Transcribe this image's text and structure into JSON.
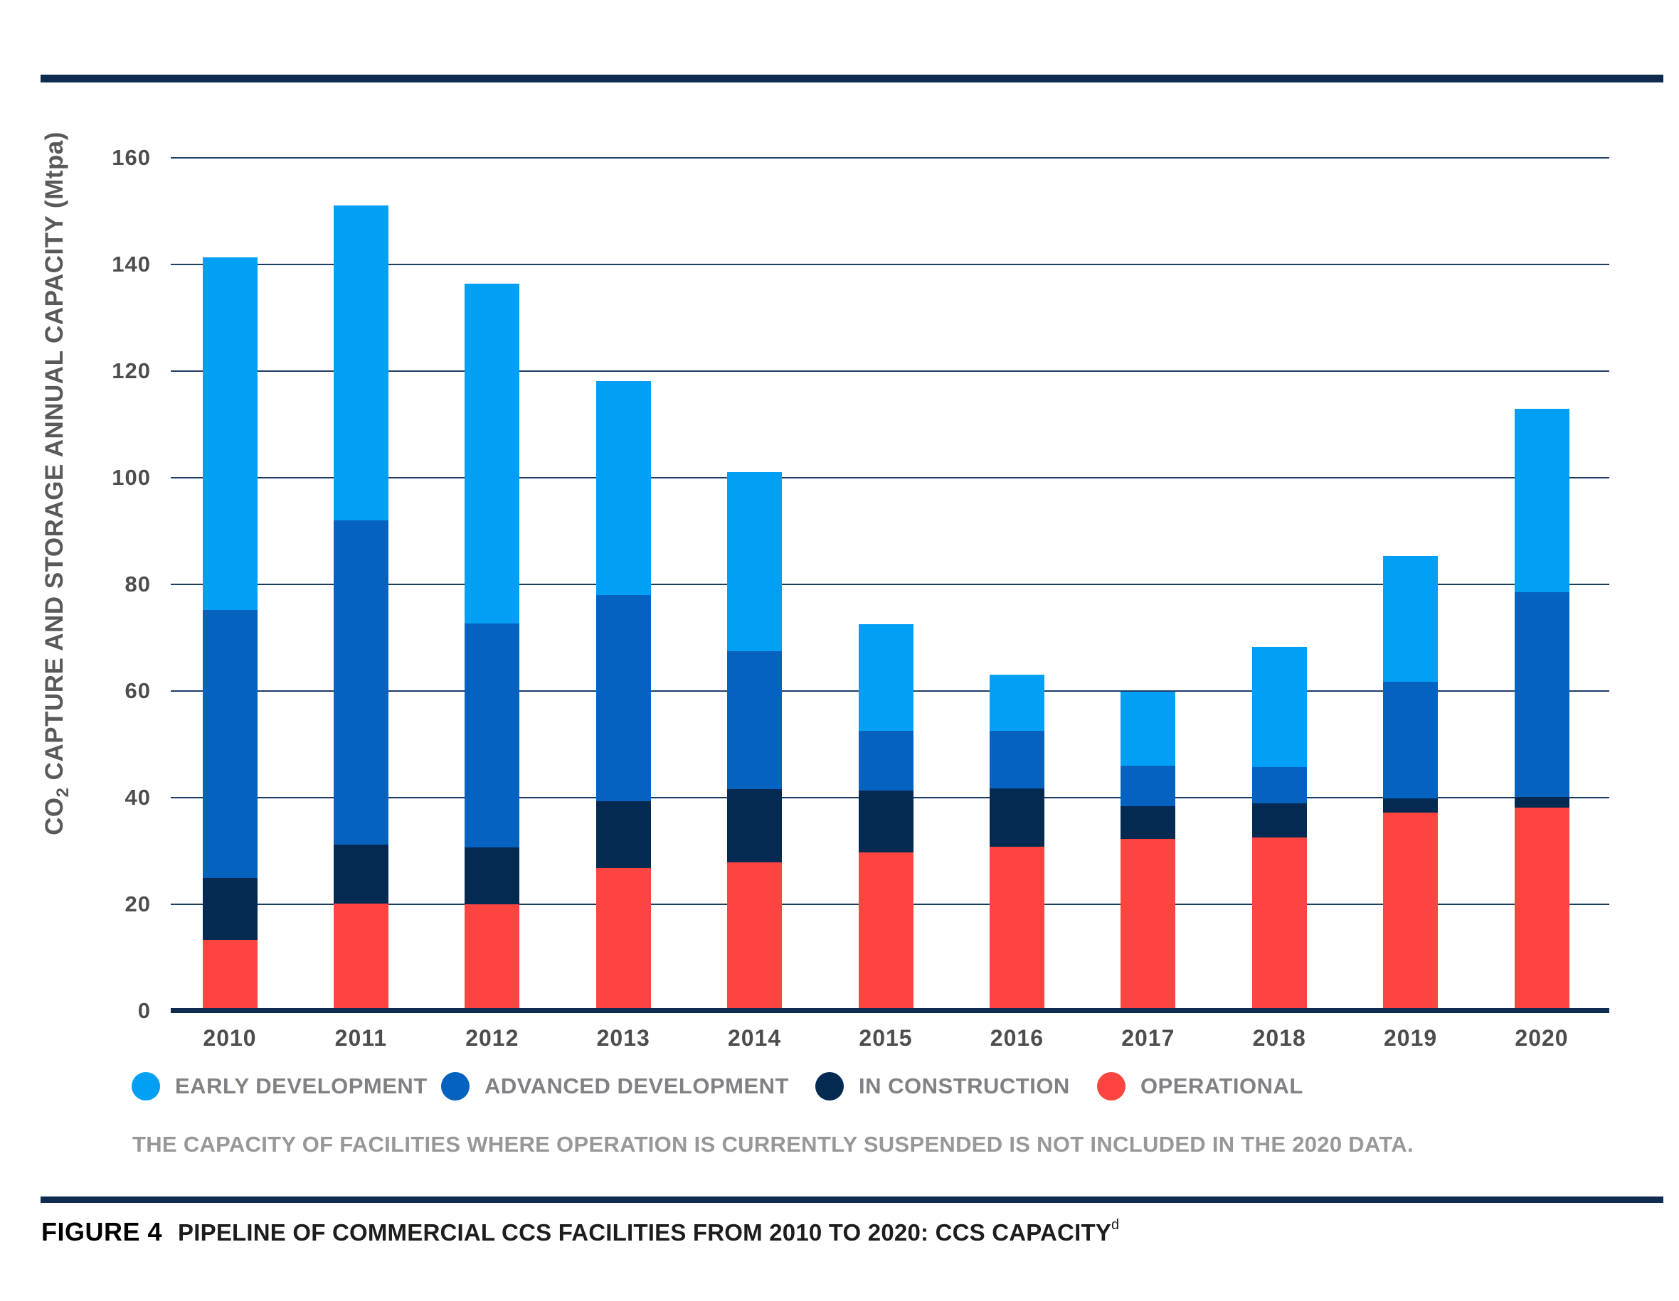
{
  "chart_data": {
    "type": "bar",
    "stacked": true,
    "title": "",
    "ylabel_prefix": "CO",
    "ylabel_sub": "2",
    "ylabel_suffix": " CAPTURE AND STORAGE ANNUAL CAPACITY (Mtpa)",
    "categories": [
      "2010",
      "2011",
      "2012",
      "2013",
      "2014",
      "2015",
      "2016",
      "2017",
      "2018",
      "2019",
      "2020"
    ],
    "series": [
      {
        "name": "OPERATIONAL",
        "color": "#fc4540",
        "values": [
          13.3,
          20.1,
          20.0,
          26.8,
          27.9,
          29.7,
          30.8,
          32.3,
          32.6,
          37.2,
          38.2
        ]
      },
      {
        "name": "IN CONSTRUCTION",
        "color": "#042a52",
        "values": [
          11.6,
          11.1,
          10.7,
          12.6,
          13.7,
          11.6,
          11.0,
          6.1,
          6.3,
          2.7,
          2.0
        ]
      },
      {
        "name": "ADVANCED DEVELOPMENT",
        "color": "#0562bf",
        "values": [
          50.3,
          60.8,
          42.0,
          38.6,
          25.9,
          11.3,
          10.7,
          7.6,
          6.9,
          21.8,
          38.3
        ]
      },
      {
        "name": "EARLY DEVELOPMENT",
        "color": "#02a0f5",
        "values": [
          66.2,
          59.1,
          63.7,
          40.2,
          33.6,
          20.0,
          10.6,
          13.9,
          22.5,
          23.7,
          34.5
        ]
      }
    ],
    "bar_totals": [
      141.4,
      151.1,
      136.4,
      118.2,
      101.1,
      72.6,
      63.1,
      59.9,
      68.3,
      85.4,
      113.0
    ],
    "ylim": [
      0,
      160
    ],
    "ytick_step": 20,
    "grid": true,
    "legend_position": "bottom"
  },
  "legend": {
    "items": [
      {
        "label": "EARLY DEVELOPMENT",
        "color": "#02a0f5"
      },
      {
        "label": "ADVANCED DEVELOPMENT",
        "color": "#0562bf"
      },
      {
        "label": "IN CONSTRUCTION",
        "color": "#042a52"
      },
      {
        "label": "OPERATIONAL",
        "color": "#fc4540"
      }
    ]
  },
  "note": "THE CAPACITY OF FACILITIES WHERE OPERATION IS CURRENTLY SUSPENDED IS NOT INCLUDED IN THE 2020 DATA.",
  "caption": {
    "label": "FIGURE 4",
    "title": "PIPELINE OF COMMERCIAL CCS FACILITIES FROM 2010 TO 2020: CCS CAPACITY",
    "superscript": "d"
  },
  "colors": {
    "rule_navy": "#0f2c50",
    "gridline": "#1b3d63",
    "tick_label": "#4d4d4f",
    "y_title": "#58595b",
    "legend_label": "#7f8184",
    "note_text": "#96989a",
    "caption_text": "#1d1d1b"
  }
}
